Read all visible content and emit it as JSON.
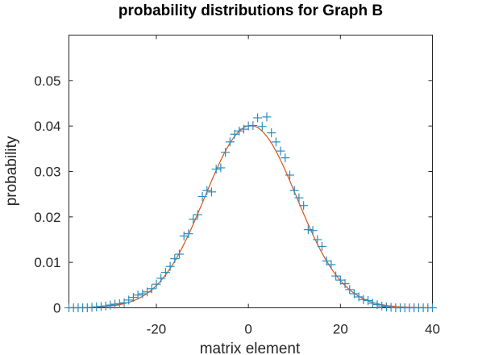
{
  "chart_data": {
    "type": "scatter",
    "title": "probability distributions for Graph B",
    "xlabel": "matrix element",
    "ylabel": "probability",
    "xlim": [
      -39,
      40
    ],
    "ylim": [
      0,
      0.06
    ],
    "xticks": [
      -20,
      0,
      20,
      40
    ],
    "yticks": [
      0,
      0.01,
      0.02,
      0.03,
      0.04,
      0.05
    ],
    "ytick_labels": [
      "0",
      "0.01",
      "0.02",
      "0.03",
      "0.04",
      "0.05"
    ],
    "xtick_labels": [
      "-20",
      "0",
      "20",
      "40"
    ],
    "grid": false,
    "legend": "none",
    "series": [
      {
        "kind": "markers",
        "marker": "plus",
        "color": "#2b8cbe",
        "x": [
          -39,
          -38,
          -37,
          -36,
          -35,
          -34,
          -33,
          -32,
          -31,
          -30,
          -29,
          -28,
          -27,
          -26,
          -25,
          -24,
          -23,
          -22,
          -21,
          -20,
          -19,
          -18,
          -17,
          -16,
          -15,
          -14,
          -13,
          -12,
          -11,
          -10,
          -9,
          -8,
          -7,
          -6,
          -5,
          -4,
          -3,
          -2,
          -1,
          0,
          1,
          2,
          3,
          4,
          5,
          6,
          7,
          8,
          9,
          10,
          11,
          12,
          13,
          14,
          15,
          16,
          17,
          18,
          19,
          20,
          21,
          22,
          23,
          24,
          25,
          26,
          27,
          28,
          29,
          30,
          31,
          32,
          33,
          34,
          35,
          36,
          37,
          38,
          39,
          40
        ],
        "y": [
          0,
          0,
          0,
          0,
          0,
          0.0001,
          0.0002,
          0.0003,
          0.0004,
          0.0006,
          0.0008,
          0.0009,
          0.0011,
          0.0017,
          0.0023,
          0.0028,
          0.0031,
          0.0035,
          0.0042,
          0.0052,
          0.0065,
          0.0078,
          0.0091,
          0.0108,
          0.0118,
          0.0158,
          0.0163,
          0.0195,
          0.0205,
          0.0245,
          0.0258,
          0.0255,
          0.0305,
          0.0308,
          0.0342,
          0.0365,
          0.0382,
          0.0389,
          0.0393,
          0.04,
          0.0401,
          0.0418,
          0.0399,
          0.042,
          0.0385,
          0.0365,
          0.0345,
          0.033,
          0.0292,
          0.0258,
          0.0242,
          0.0225,
          0.0172,
          0.017,
          0.015,
          0.0135,
          0.0103,
          0.0095,
          0.007,
          0.0061,
          0.0053,
          0.004,
          0.0031,
          0.0024,
          0.0018,
          0.0016,
          0.001,
          0.0007,
          0.0004,
          0.0002,
          0.0001,
          0,
          0,
          0,
          0,
          0,
          0,
          0,
          0,
          0
        ]
      },
      {
        "kind": "line",
        "color": "#d95319",
        "curve": "gaussian",
        "mean": 0.5,
        "sigma": 10,
        "peak": 0.0401
      }
    ]
  }
}
